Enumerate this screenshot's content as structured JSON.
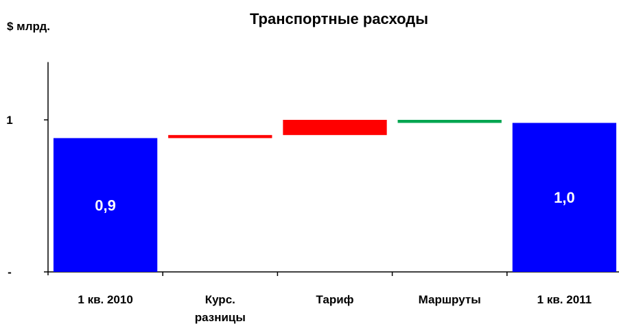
{
  "chart_data": {
    "type": "bar",
    "subtype": "waterfall",
    "title": "Транспортные расходы",
    "unit_label": "$ млрд.",
    "ylim": [
      0,
      1.38
    ],
    "y_ticks": [
      {
        "value": 0,
        "label": "-"
      },
      {
        "value": 1,
        "label": "1"
      }
    ],
    "categories": [
      [
        "1 кв. 2010"
      ],
      [
        "Курс.",
        "разницы"
      ],
      [
        "Тариф"
      ],
      [
        "Маршруты"
      ],
      [
        "1 кв. 2011"
      ]
    ],
    "bars": [
      {
        "kind": "total",
        "start": 0,
        "end": 0.88,
        "label": "0,9",
        "color": "#0000FF"
      },
      {
        "kind": "delta",
        "start": 0.88,
        "end": 0.9,
        "label": "",
        "color": "#FF0000"
      },
      {
        "kind": "delta",
        "start": 0.9,
        "end": 1.0,
        "label": "",
        "color": "#FF0000"
      },
      {
        "kind": "delta",
        "start": 1.0,
        "end": 0.98,
        "label": "",
        "color": "#00A550"
      },
      {
        "kind": "total",
        "start": 0,
        "end": 0.98,
        "label": "1,0",
        "color": "#0000FF"
      }
    ],
    "grid": false,
    "legend": "none"
  }
}
